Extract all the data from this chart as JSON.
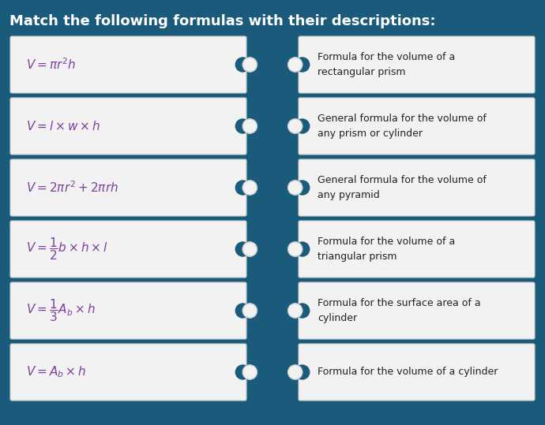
{
  "title": "Match the following formulas with their descriptions:",
  "title_color": "#ffffff",
  "title_fontsize": 13,
  "background_color": "#1a5a7a",
  "box_bg_color": "#f2f2f2",
  "box_border_color": "#cccccc",
  "formula_text_color": "#7b3fa0",
  "desc_text_color": "#222222",
  "formulas": [
    "$V = \\pi r^2 h$",
    "$V = l \\times w \\times h$",
    "$V = 2\\pi r^2 + 2\\pi rh$",
    "$V = \\dfrac{1}{2} b \\times h \\times l$",
    "$V = \\dfrac{1}{3} A_b \\times h$",
    "$V = A_b \\times h$"
  ],
  "descriptions": [
    "Formula for the volume of a\nrectangular prism",
    "General formula for the volume of\nany prism or cylinder",
    "General formula for the volume of\nany pyramid",
    "Formula for the volume of a\ntriangular prism",
    "Formula for the surface area of a\ncylinder",
    "Formula for the volume of a cylinder"
  ],
  "n_rows": 6,
  "fig_width": 6.9,
  "fig_height": 5.39,
  "dpi": 100
}
